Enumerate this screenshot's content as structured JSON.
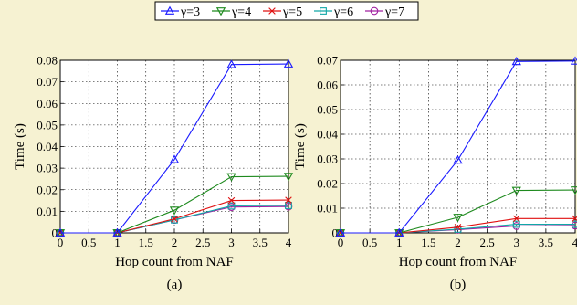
{
  "legend": [
    {
      "label": "γ=3",
      "color": "#1a1aff",
      "marker": "triangle-up"
    },
    {
      "label": "γ=4",
      "color": "#1e8a1e",
      "marker": "triangle-down"
    },
    {
      "label": "γ=5",
      "color": "#e01010",
      "marker": "x"
    },
    {
      "label": "γ=6",
      "color": "#11a7a7",
      "marker": "square"
    },
    {
      "label": "γ=7",
      "color": "#a020a0",
      "marker": "circle"
    }
  ],
  "chart_data": [
    {
      "type": "line",
      "caption": "(a)",
      "xlabel": "Hop count from NAF",
      "ylabel": "Time (s)",
      "xlim": [
        0,
        4
      ],
      "ylim": [
        0,
        0.08
      ],
      "xticks": [
        "0",
        "0.5",
        "1",
        "1.5",
        "2",
        "2.5",
        "3",
        "3.5",
        "4"
      ],
      "yticks": [
        "0",
        "0.01",
        "0.02",
        "0.03",
        "0.04",
        "0.05",
        "0.06",
        "0.07",
        "0.08"
      ],
      "grid": true,
      "x": [
        0,
        1,
        2,
        3,
        4
      ],
      "series": [
        {
          "name": "γ=3",
          "values": [
            0,
            0,
            0.034,
            0.078,
            0.0783
          ]
        },
        {
          "name": "γ=4",
          "values": [
            0,
            0,
            0.0105,
            0.026,
            0.0262
          ]
        },
        {
          "name": "γ=5",
          "values": [
            0,
            0,
            0.0065,
            0.015,
            0.0152
          ]
        },
        {
          "name": "γ=6",
          "values": [
            0,
            0,
            0.006,
            0.0125,
            0.0127
          ]
        },
        {
          "name": "γ=7",
          "values": [
            0,
            0,
            0.006,
            0.012,
            0.0122
          ]
        }
      ]
    },
    {
      "type": "line",
      "caption": "(b)",
      "xlabel": "Hop count from NAF",
      "ylabel": "Time (s)",
      "xlim": [
        0,
        4
      ],
      "ylim": [
        0,
        0.07
      ],
      "xticks": [
        "0",
        "0.5",
        "1",
        "1.5",
        "2",
        "2.5",
        "3",
        "3.5",
        "4"
      ],
      "yticks": [
        "0",
        "0.01",
        "0.02",
        "0.03",
        "0.04",
        "0.05",
        "0.06",
        "0.07"
      ],
      "grid": true,
      "x": [
        0,
        1,
        2,
        3,
        4
      ],
      "series": [
        {
          "name": "γ=3",
          "values": [
            0,
            0,
            0.0295,
            0.0695,
            0.0697
          ]
        },
        {
          "name": "γ=4",
          "values": [
            0,
            0,
            0.0063,
            0.0172,
            0.0174
          ]
        },
        {
          "name": "γ=5",
          "values": [
            0,
            0,
            0.0023,
            0.0058,
            0.0058
          ]
        },
        {
          "name": "γ=6",
          "values": [
            0,
            0,
            0.0015,
            0.0035,
            0.0035
          ]
        },
        {
          "name": "γ=7",
          "values": [
            0,
            0,
            0.0013,
            0.0028,
            0.003
          ]
        }
      ]
    }
  ]
}
